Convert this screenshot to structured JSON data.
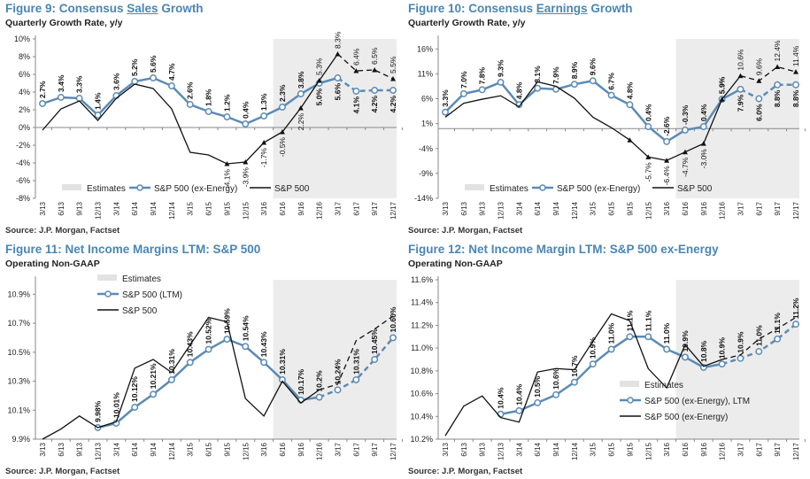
{
  "chart_data": [
    {
      "type": "line",
      "title_pre": "Figure 9: Consensus ",
      "title_ul": "Sales",
      "title_post": " Growth",
      "subtitle": "Quarterly Growth Rate, y/y",
      "source": "Source: J.P. Morgan, Factset",
      "x": [
        "3/13",
        "6/13",
        "9/13",
        "12/13",
        "3/14",
        "6/14",
        "9/14",
        "12/14",
        "3/15",
        "6/15",
        "9/15",
        "12/15",
        "3/16",
        "6/16",
        "9/16",
        "12/16",
        "3/17",
        "6/17",
        "9/17",
        "12/17"
      ],
      "ylim": [
        -8,
        10
      ],
      "yticks": [
        -8,
        -6,
        -4,
        -2,
        0,
        2,
        4,
        6,
        8,
        10
      ],
      "ytick_format": "pct0",
      "estimates_from": "6/16",
      "legend": [
        "Estimates",
        "S&P 500 (ex-Energy)",
        "S&P 500"
      ],
      "legend_position": "bottom",
      "series": [
        {
          "name": "S&P 500 (ex-Energy)",
          "values": [
            2.7,
            3.4,
            3.3,
            1.4,
            3.6,
            5.2,
            5.6,
            4.7,
            2.6,
            1.8,
            1.2,
            0.4,
            1.3,
            2.3,
            3.8,
            5.0,
            5.6,
            4.1,
            4.2,
            4.2
          ],
          "labels": [
            "2.7%",
            "3.4%",
            "3.3%",
            "1.4%",
            "3.6%",
            "5.2%",
            "5.6%",
            "4.7%",
            "2.6%",
            "1.8%",
            "1.2%",
            "0.4%",
            "1.3%",
            "2.3%",
            "3.8%",
            "5.0%",
            "5.6%",
            "4.1%",
            "4.2%",
            "4.2%"
          ]
        },
        {
          "name": "S&P 500",
          "values": [
            -0.3,
            2.1,
            3.0,
            0.8,
            3.3,
            4.9,
            4.4,
            2.1,
            -2.8,
            -3.1,
            -4.1,
            -3.9,
            -1.7,
            -0.5,
            2.2,
            5.3,
            8.3,
            6.4,
            6.5,
            5.5
          ],
          "labels": [
            null,
            null,
            null,
            null,
            null,
            null,
            null,
            null,
            null,
            null,
            "-4.1%",
            "-3.9%",
            "-1.7%",
            "-0.5%",
            "2.2%",
            "5.3%",
            "8.3%",
            "6.4%",
            "6.5%",
            "5.5%"
          ]
        }
      ]
    },
    {
      "type": "line",
      "title_pre": "Figure 10: Consensus ",
      "title_ul": "Earnings",
      "title_post": " Growth",
      "subtitle": "Quarterly Growth Rate, y/y",
      "source": "Source: J.P. Morgan, Factset",
      "x": [
        "3/13",
        "6/13",
        "9/13",
        "12/13",
        "3/14",
        "6/14",
        "9/14",
        "12/14",
        "3/15",
        "6/15",
        "9/15",
        "12/15",
        "3/16",
        "6/16",
        "9/16",
        "12/16",
        "3/17",
        "6/17",
        "9/17",
        "12/17"
      ],
      "ylim": [
        -14,
        18
      ],
      "yticks": [
        -14,
        -9,
        -4,
        1,
        6,
        11,
        16
      ],
      "ytick_format": "pct0",
      "estimates_from": "6/16",
      "legend": [
        "Estimates",
        "S&P 500 (ex-Energy)",
        "S&P 500"
      ],
      "legend_position": "bottom",
      "series": [
        {
          "name": "S&P 500 (ex-Energy)",
          "values": [
            3.3,
            7.0,
            7.8,
            9.3,
            4.8,
            8.1,
            7.9,
            8.9,
            9.6,
            6.7,
            4.8,
            0.4,
            -2.6,
            -0.3,
            0.4,
            5.9,
            7.9,
            6.0,
            8.8,
            8.8
          ],
          "labels": [
            "3.3%",
            "7.0%",
            "7.8%",
            "9.3%",
            "4.8%",
            "8.1%",
            "7.9%",
            "8.9%",
            "9.6%",
            "6.7%",
            "4.8%",
            "0.4%",
            "-2.6%",
            "-0.3%",
            "0.4%",
            "5.9%",
            "7.9%",
            "6.0%",
            "8.8%",
            "8.8%"
          ]
        },
        {
          "name": "S&P 500",
          "values": [
            2.3,
            5.1,
            5.9,
            6.6,
            4.4,
            9.4,
            8.5,
            6.1,
            2.3,
            0.2,
            -2.3,
            -5.7,
            -6.4,
            -4.7,
            -3.0,
            5.9,
            10.6,
            9.6,
            12.4,
            11.4
          ],
          "labels": [
            null,
            null,
            null,
            null,
            null,
            null,
            null,
            null,
            null,
            null,
            null,
            "-5.7%",
            "-6.4%",
            "-4.7%",
            "-3.0%",
            "5.9%",
            "10.6%",
            "9.6%",
            "12.4%",
            "11.4%"
          ]
        }
      ]
    },
    {
      "type": "line",
      "title_pre": "Figure 11: Net Income Margins LTM: S&P 500",
      "title_ul": "",
      "title_post": "",
      "subtitle": "Operating Non-GAAP",
      "source": "Source: J.P. Morgan, Factset",
      "x": [
        "3/13",
        "6/13",
        "9/13",
        "12/13",
        "3/14",
        "6/14",
        "9/14",
        "12/14",
        "3/15",
        "6/15",
        "9/15",
        "12/15",
        "3/16",
        "6/16",
        "9/16",
        "12/16",
        "3/17",
        "6/17",
        "9/17",
        "12/17"
      ],
      "ylim": [
        9.9,
        11.0
      ],
      "yticks": [
        9.9,
        10.1,
        10.3,
        10.5,
        10.7,
        10.9
      ],
      "ytick_format": "pct1",
      "estimates_from": "6/16",
      "legend": [
        "Estimates",
        "S&P 500 (LTM)",
        "S&P 500"
      ],
      "legend_position": "top-left",
      "series": [
        {
          "name": "S&P 500 (LTM)",
          "values": [
            null,
            null,
            null,
            9.98,
            10.01,
            10.12,
            10.21,
            10.31,
            10.43,
            10.52,
            10.59,
            10.54,
            10.43,
            10.31,
            10.17,
            10.19,
            10.24,
            10.31,
            10.45,
            10.6
          ],
          "labels": [
            null,
            null,
            null,
            "9.98%",
            "10.01%",
            "10.12%",
            "10.21%",
            "10.31%",
            "10.43%",
            "10.52%",
            "10.59%",
            "10.54%",
            "10.43%",
            "10.31%",
            "10.17%",
            "10.2%",
            "10.24%",
            "10.31%",
            "10.45%",
            "10.60%"
          ]
        },
        {
          "name": "S&P 500",
          "values": [
            9.9,
            9.97,
            10.06,
            9.98,
            10.02,
            10.39,
            10.45,
            10.36,
            10.55,
            10.74,
            10.71,
            10.18,
            10.06,
            10.3,
            10.15,
            10.24,
            10.28,
            10.58,
            10.66,
            10.75
          ],
          "labels": []
        }
      ]
    },
    {
      "type": "line",
      "title_pre": "Figure 12: Net Income Margin LTM: S&P 500 ex-Energy",
      "title_ul": "",
      "title_post": "",
      "subtitle": "Operating Non-GAAP",
      "source": "Source: J.P. Morgan, Factset",
      "x": [
        "3/13",
        "6/13",
        "9/13",
        "12/13",
        "3/14",
        "6/14",
        "9/14",
        "12/14",
        "3/15",
        "6/15",
        "9/15",
        "12/15",
        "3/16",
        "6/16",
        "9/16",
        "12/16",
        "3/17",
        "6/17",
        "9/17",
        "12/17"
      ],
      "ylim": [
        10.2,
        11.6
      ],
      "yticks": [
        10.2,
        10.4,
        10.6,
        10.8,
        11.0,
        11.2,
        11.4,
        11.6
      ],
      "ytick_format": "pct1",
      "estimates_from": "6/16",
      "legend": [
        "Estimates",
        "S&P 500 (ex-Energy), LTM",
        "S&P 500 (ex-Energy)"
      ],
      "legend_position": "bottom-right",
      "series": [
        {
          "name": "S&P 500 (ex-Energy), LTM",
          "values": [
            null,
            null,
            null,
            10.42,
            10.45,
            10.52,
            10.59,
            10.7,
            10.86,
            10.99,
            11.1,
            11.1,
            10.99,
            10.92,
            10.83,
            10.86,
            10.91,
            10.97,
            11.08,
            11.21
          ],
          "labels": [
            null,
            null,
            null,
            "10.4%",
            "10.4%",
            "10.5%",
            "10.6%",
            "10.7%",
            "10.9%",
            "11.0%",
            "11.1%",
            "11.1%",
            "11.0%",
            "10.9%",
            "10.8%",
            "10.9%",
            "10.9%",
            "11.0%",
            "11.1%",
            "11.2%"
          ]
        },
        {
          "name": "S&P 500 (ex-Energy)",
          "values": [
            10.23,
            10.49,
            10.58,
            10.39,
            10.35,
            10.79,
            10.82,
            10.81,
            11.06,
            11.3,
            11.24,
            10.82,
            10.65,
            11.03,
            10.84,
            10.9,
            10.94,
            11.08,
            11.17,
            11.27
          ],
          "labels": []
        }
      ]
    }
  ]
}
